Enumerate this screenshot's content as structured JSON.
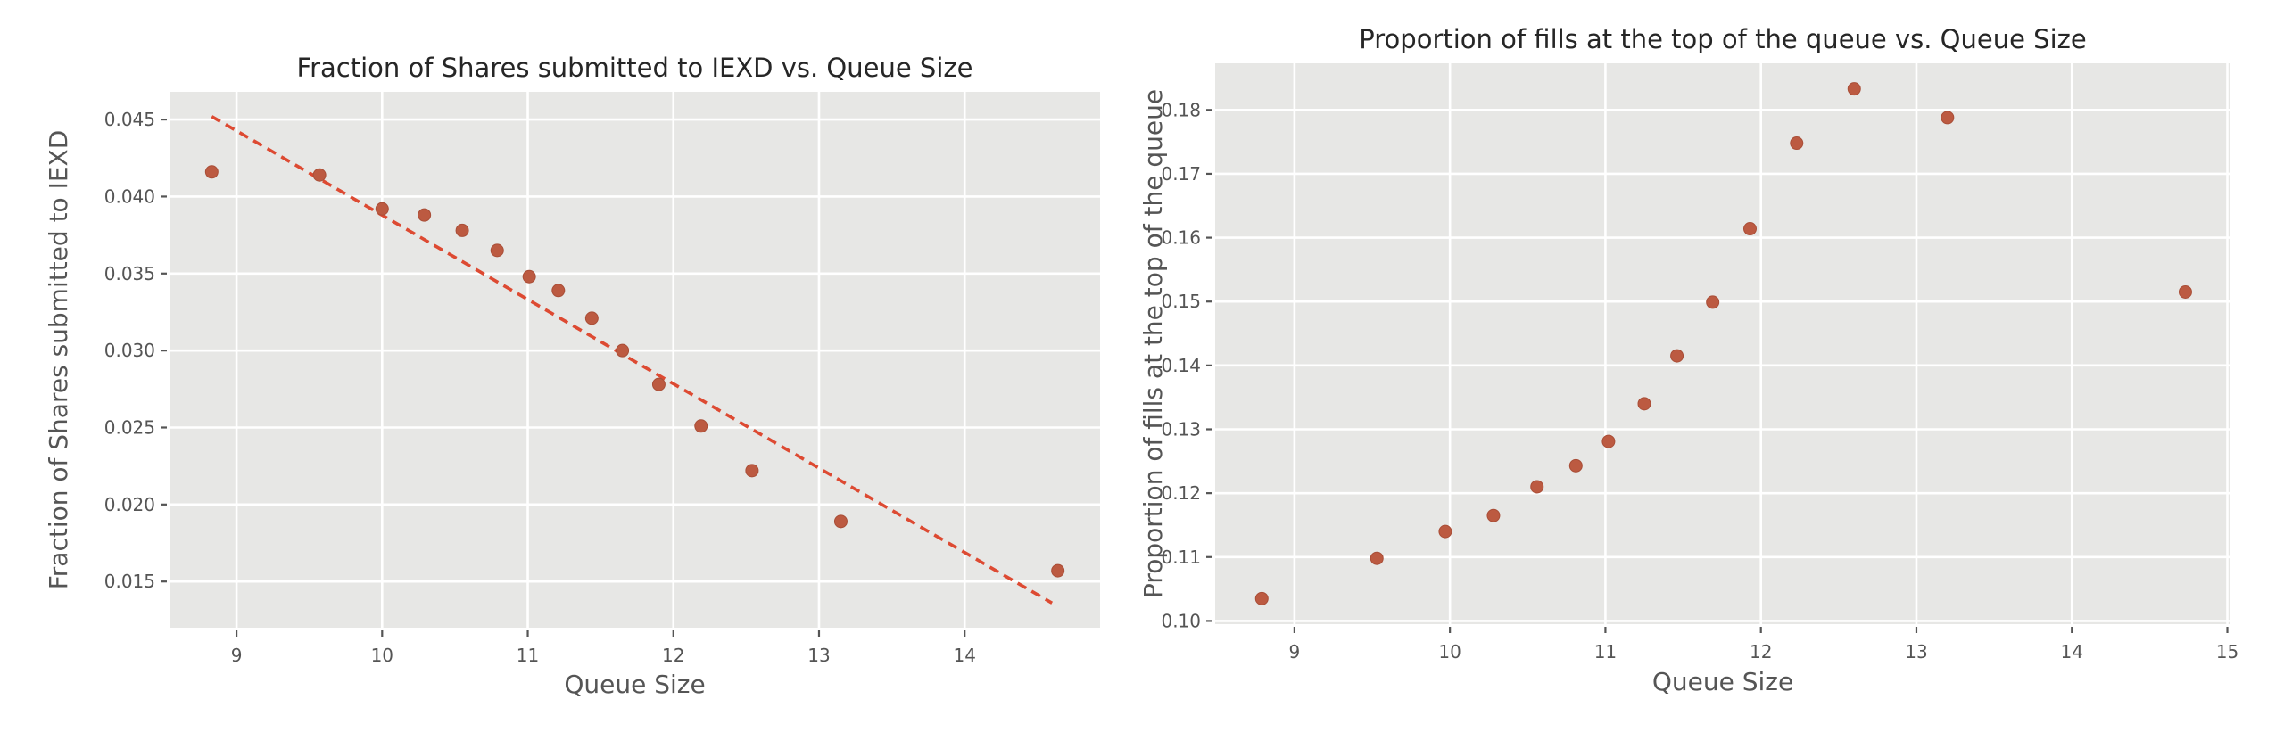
{
  "style": {
    "page_bg": "#ffffff",
    "plot_bg": "#e7e7e5",
    "grid_color": "#ffffff",
    "tick_color": "#555555",
    "label_color": "#555555",
    "title_color": "#262626",
    "marker_color": "#bc5a41",
    "marker_edge": "#a94e37",
    "trend_color": "#dd4a32"
  },
  "chart_data": [
    {
      "type": "scatter",
      "title": "Fraction of Shares submitted to IEXD vs. Queue Size",
      "xlabel": "Queue Size",
      "ylabel": "Fraction of Shares submitted to IEXD",
      "xlim": [
        8.54,
        14.93
      ],
      "ylim": [
        0.012,
        0.0468
      ],
      "grid": true,
      "legend_position": "none",
      "xticks": [
        {
          "v": 9,
          "label": "9"
        },
        {
          "v": 10,
          "label": "10"
        },
        {
          "v": 11,
          "label": "11"
        },
        {
          "v": 12,
          "label": "12"
        },
        {
          "v": 13,
          "label": "13"
        },
        {
          "v": 14,
          "label": "14"
        }
      ],
      "yticks": [
        {
          "v": 0.015,
          "label": "0.015"
        },
        {
          "v": 0.02,
          "label": "0.020"
        },
        {
          "v": 0.025,
          "label": "0.025"
        },
        {
          "v": 0.03,
          "label": "0.030"
        },
        {
          "v": 0.035,
          "label": "0.035"
        },
        {
          "v": 0.04,
          "label": "0.040"
        },
        {
          "v": 0.045,
          "label": "0.045"
        }
      ],
      "points": [
        [
          8.83,
          0.0416
        ],
        [
          9.57,
          0.0414
        ],
        [
          10.0,
          0.0392
        ],
        [
          10.29,
          0.0388
        ],
        [
          10.55,
          0.0378
        ],
        [
          10.79,
          0.0365
        ],
        [
          11.01,
          0.0348
        ],
        [
          11.21,
          0.0339
        ],
        [
          11.44,
          0.0321
        ],
        [
          11.65,
          0.03
        ],
        [
          11.9,
          0.0278
        ],
        [
          12.19,
          0.0251
        ],
        [
          12.54,
          0.0222
        ],
        [
          13.15,
          0.0189
        ],
        [
          14.64,
          0.0157
        ]
      ],
      "trendline": {
        "x1": 8.83,
        "y1": 0.0452,
        "x2": 14.6,
        "y2": 0.0136,
        "style": "dashed"
      }
    },
    {
      "type": "scatter",
      "title": "Proportion of fills at the top of the queue vs. Queue Size",
      "xlabel": "Queue Size",
      "ylabel": "Proportion of fills at the top of the queue",
      "xlim": [
        8.49,
        15.02
      ],
      "ylim": [
        0.0995,
        0.1873
      ],
      "grid": true,
      "legend_position": "none",
      "xticks": [
        {
          "v": 9,
          "label": "9"
        },
        {
          "v": 10,
          "label": "10"
        },
        {
          "v": 11,
          "label": "11"
        },
        {
          "v": 12,
          "label": "12"
        },
        {
          "v": 13,
          "label": "13"
        },
        {
          "v": 14,
          "label": "14"
        },
        {
          "v": 15,
          "label": "15"
        }
      ],
      "yticks": [
        {
          "v": 0.1,
          "label": "0.10"
        },
        {
          "v": 0.11,
          "label": "0.11"
        },
        {
          "v": 0.12,
          "label": "0.12"
        },
        {
          "v": 0.13,
          "label": "0.13"
        },
        {
          "v": 0.14,
          "label": "0.14"
        },
        {
          "v": 0.15,
          "label": "0.15"
        },
        {
          "v": 0.16,
          "label": "0.16"
        },
        {
          "v": 0.17,
          "label": "0.17"
        },
        {
          "v": 0.18,
          "label": "0.18"
        }
      ],
      "points": [
        [
          8.79,
          0.1035
        ],
        [
          9.53,
          0.1098
        ],
        [
          9.97,
          0.114
        ],
        [
          10.28,
          0.1165
        ],
        [
          10.56,
          0.121
        ],
        [
          10.81,
          0.1243
        ],
        [
          11.02,
          0.1281
        ],
        [
          11.25,
          0.134
        ],
        [
          11.46,
          0.1415
        ],
        [
          11.69,
          0.1499
        ],
        [
          11.93,
          0.1614
        ],
        [
          12.23,
          0.1748
        ],
        [
          12.6,
          0.1833
        ],
        [
          13.2,
          0.1788
        ],
        [
          14.73,
          0.1515
        ]
      ],
      "trendline": null
    }
  ]
}
